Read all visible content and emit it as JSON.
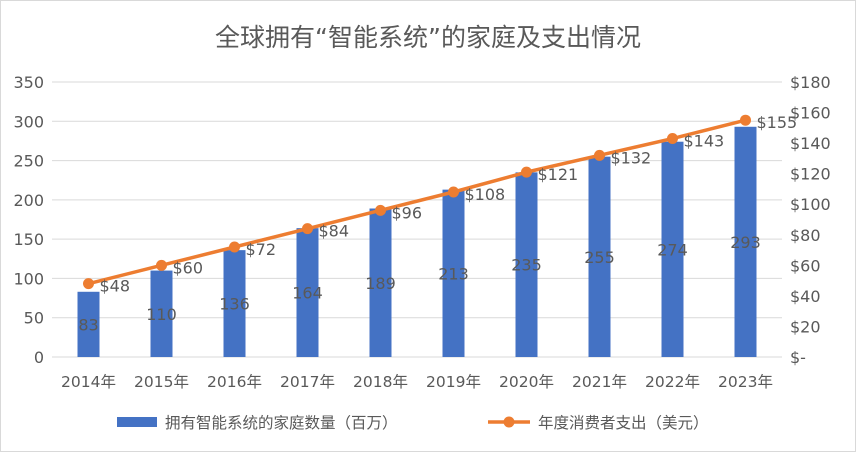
{
  "chart_data": {
    "type": "bar+line",
    "title": "全球拥有“智能系统”的家庭及支出情况",
    "categories": [
      "2014年",
      "2015年",
      "2016年",
      "2017年",
      "2018年",
      "2019年",
      "2020年",
      "2021年",
      "2022年",
      "2023年"
    ],
    "series": [
      {
        "name": "拥有智能系统的家庭数量（百万）",
        "type": "bar",
        "axis": "left",
        "values": [
          83,
          110,
          136,
          164,
          189,
          213,
          235,
          255,
          274,
          293
        ],
        "labels": [
          "83",
          "110",
          "136",
          "164",
          "189",
          "213",
          "235",
          "255",
          "274",
          "293"
        ]
      },
      {
        "name": "年度消费者支出（美元）",
        "type": "line",
        "axis": "right",
        "values": [
          48,
          60,
          72,
          84,
          96,
          108,
          121,
          132,
          143,
          155
        ],
        "labels": [
          "$48",
          "$60",
          "$72",
          "$84",
          "$96",
          "$108",
          "$121",
          "$132",
          "$143",
          "$155"
        ]
      }
    ],
    "y_left": {
      "min": 0,
      "max": 350,
      "ticks": [
        "0",
        "50",
        "100",
        "150",
        "200",
        "250",
        "300",
        "350"
      ]
    },
    "y_right": {
      "min": 0,
      "max": 180,
      "ticks": [
        "$-",
        "$20",
        "$40",
        "$60",
        "$80",
        "$100",
        "$120",
        "$140",
        "$160",
        "$180"
      ]
    },
    "grid": true,
    "legend_position": "bottom",
    "colors": {
      "bar": "#4472C4",
      "line": "#ED7D31",
      "grid": "#D9D9D9",
      "text": "#595959"
    }
  }
}
